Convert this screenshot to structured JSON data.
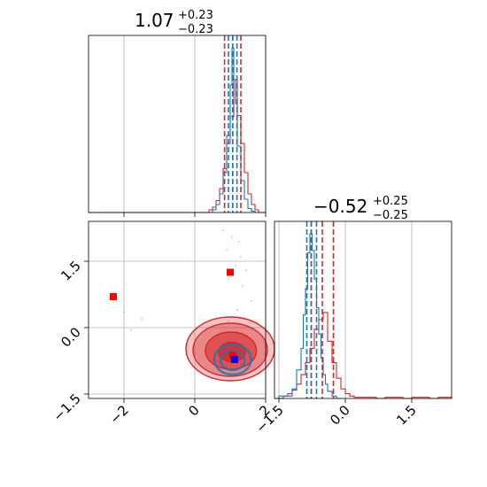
{
  "chart_data": {
    "type": "corner",
    "parameters": [
      {
        "title_value": "1.07",
        "title_upper": "+0.23",
        "title_lower": "−0.23"
      },
      {
        "title_value": "−0.52",
        "title_upper": "+0.25",
        "title_lower": "−0.25"
      }
    ],
    "axes": {
      "p0": {
        "range": [
          -3.0,
          2.0
        ],
        "ticks": [
          -2,
          0,
          2
        ],
        "tick_labels": [
          "−2",
          "0",
          "2"
        ]
      },
      "p1": {
        "range": [
          -1.6,
          2.4
        ],
        "ticks": [
          -1.5,
          0.0,
          1.5
        ],
        "tick_labels": [
          "−1.5",
          "0.0",
          "1.5"
        ]
      }
    },
    "grid": true,
    "series": [
      {
        "color": "#d62728",
        "p0_quantiles": [
          0.84,
          1.07,
          1.3
        ],
        "p1_quantiles": [
          -0.77,
          -0.52,
          -0.27
        ],
        "p0_hist": {
          "edges": [
            -3.0,
            0.4,
            0.5,
            0.6,
            0.7,
            0.8,
            0.9,
            1.0,
            1.1,
            1.2,
            1.3,
            1.4,
            1.5,
            1.6,
            1.7,
            1.8,
            2.0
          ],
          "counts": [
            0,
            2,
            4,
            9,
            18,
            33,
            52,
            72,
            100,
            73,
            52,
            30,
            14,
            6,
            2,
            0
          ]
        },
        "p1_hist": {
          "edges": [
            -1.6,
            -1.4,
            -1.3,
            -1.2,
            -1.1,
            -1.0,
            -0.9,
            -0.8,
            -0.7,
            -0.6,
            -0.5,
            -0.4,
            -0.3,
            -0.2,
            -0.1,
            0.0,
            0.1,
            0.2,
            0.5,
            0.7,
            0.9,
            1.1,
            1.3,
            1.5,
            1.7,
            1.9,
            2.1,
            2.4
          ],
          "counts": [
            0,
            2,
            4,
            7,
            12,
            20,
            30,
            42,
            58,
            66,
            72,
            48,
            30,
            17,
            8,
            4,
            2,
            1,
            1,
            0,
            1,
            1,
            0,
            1,
            1,
            0,
            1
          ]
        },
        "outliers": [
          [
            -2.3,
            0.7
          ],
          [
            1.0,
            1.25
          ]
        ],
        "scatter": [
          [
            0.8,
            2.2
          ],
          [
            1.05,
            2.05
          ],
          [
            1.25,
            1.95
          ],
          [
            0.9,
            1.75
          ],
          [
            1.3,
            1.6
          ],
          [
            1.15,
            1.4
          ],
          [
            1.45,
            1.3
          ],
          [
            0.95,
            1.1
          ],
          [
            1.35,
            0.95
          ],
          [
            1.6,
            0.6
          ],
          [
            -2.2,
            0.6
          ],
          [
            -2.0,
            0.35
          ],
          [
            -1.5,
            0.2
          ],
          [
            -1.8,
            -0.05
          ],
          [
            1.2,
            0.4
          ],
          [
            0.95,
            0.15
          ]
        ],
        "contours": [
          {
            "cx": 1.0,
            "cy": -0.48,
            "rx": 1.25,
            "ry": 0.72,
            "opacity": 0.28
          },
          {
            "cx": 1.0,
            "cy": -0.5,
            "rx": 1.05,
            "ry": 0.6,
            "opacity": 0.38
          },
          {
            "cx": 1.02,
            "cy": -0.52,
            "rx": 0.72,
            "ry": 0.42,
            "opacity": 0.55
          },
          {
            "cx": 1.05,
            "cy": -0.55,
            "rx": 0.38,
            "ry": 0.22,
            "opacity": 0.75
          }
        ]
      },
      {
        "color": "#1f77b4",
        "p0_quantiles": [
          0.95,
          1.07,
          1.19
        ],
        "p1_quantiles": [
          -0.87,
          -0.77,
          -0.65
        ],
        "p0_hist": {
          "edges": [
            0.5,
            0.6,
            0.7,
            0.8,
            0.9,
            1.0,
            1.05,
            1.1,
            1.15,
            1.2,
            1.3,
            1.4,
            1.5,
            1.6,
            1.7
          ],
          "counts": [
            2,
            6,
            14,
            30,
            58,
            96,
            124,
            100,
            82,
            50,
            24,
            10,
            3,
            1
          ]
        },
        "p1_hist": {
          "edges": [
            -1.5,
            -1.2,
            -1.1,
            -1.0,
            -0.95,
            -0.9,
            -0.85,
            -0.8,
            -0.75,
            -0.7,
            -0.65,
            -0.6,
            -0.55,
            -0.5,
            -0.45,
            -0.4,
            -0.3,
            -0.2,
            -0.1
          ],
          "counts": [
            2,
            8,
            24,
            42,
            70,
            92,
            122,
            138,
            124,
            100,
            76,
            54,
            34,
            20,
            12,
            6,
            2,
            0
          ]
        },
        "contours": [
          {
            "cx": 1.07,
            "cy": -0.72,
            "rx": 0.52,
            "ry": 0.34
          },
          {
            "cx": 1.07,
            "cy": -0.74,
            "rx": 0.34,
            "ry": 0.22
          }
        ]
      }
    ],
    "markers": [
      {
        "x": 1.07,
        "y": -0.62,
        "color": "#ff0000",
        "shape": "square"
      },
      {
        "x": 1.12,
        "y": -0.72,
        "color": "#0000ff",
        "shape": "square"
      }
    ]
  }
}
